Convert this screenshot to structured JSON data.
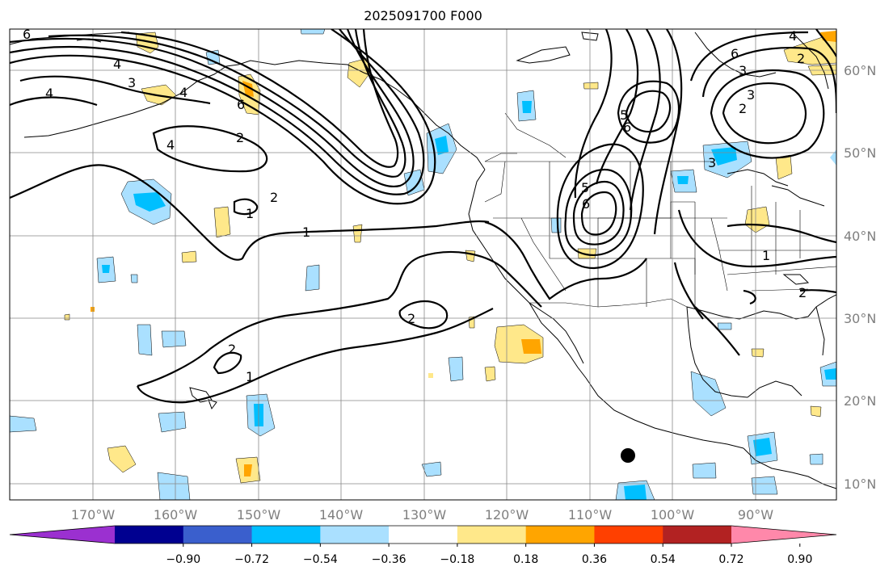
{
  "title": "2025091700 F000",
  "longitude_labels": [
    "170°W",
    "160°W",
    "150°W",
    "140°W",
    "130°W",
    "120°W",
    "110°W",
    "100°W",
    "90°W"
  ],
  "latitude_labels": [
    "60°N",
    "50°N",
    "40°N",
    "30°N",
    "20°N",
    "10°N"
  ],
  "colorbar": {
    "tick_labels": [
      "−0.90",
      "−0.72",
      "−0.54",
      "−0.36",
      "−0.18",
      "0.18",
      "0.36",
      "0.54",
      "0.72",
      "0.90"
    ],
    "colors": [
      "#9b30d0",
      "#000090",
      "#3a5fcd",
      "#00bfff",
      "#aae0ff",
      "#ffffff",
      "#ffe88a",
      "#ffa500",
      "#ff4000",
      "#b22222",
      "#ff88aa"
    ]
  },
  "contour_labels": [
    "6",
    "4",
    "3",
    "4",
    "4",
    "6",
    "2",
    "4",
    "2",
    "1",
    "1",
    "2",
    "2",
    "1",
    "5",
    "6",
    "5",
    "6",
    "4",
    "3",
    "3",
    "2",
    "6",
    "2",
    "3",
    "1",
    "2"
  ],
  "marker": "storm-center"
}
